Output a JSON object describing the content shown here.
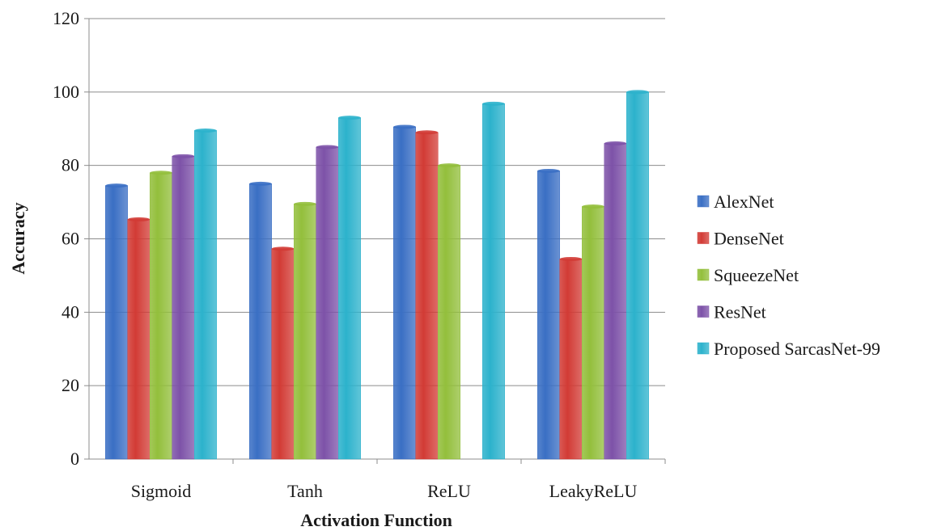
{
  "chart_data": {
    "type": "bar",
    "title": "",
    "xlabel": "Activation Function",
    "ylabel": "Accuracy",
    "categories": [
      "Sigmoid",
      "Tanh",
      "ReLU",
      "LeakyReLU"
    ],
    "ylim": [
      0,
      120
    ],
    "yticks": [
      0,
      20,
      40,
      60,
      80,
      100,
      120
    ],
    "grid": true,
    "legend_position": "right",
    "series": [
      {
        "name": "AlexNet",
        "color": "#3a6fc4",
        "values": [
          74.5,
          75,
          90.5,
          78.5
        ]
      },
      {
        "name": "DenseNet",
        "color": "#d23b35",
        "values": [
          65.3,
          57.3,
          89,
          54.5
        ]
      },
      {
        "name": "SqueezeNet",
        "color": "#93bf3c",
        "values": [
          78,
          69.5,
          80,
          68.8
        ]
      },
      {
        "name": "ResNet",
        "color": "#7d52a8",
        "values": [
          82.5,
          85,
          0,
          86
        ]
      },
      {
        "name": "Proposed SarcasNet-99",
        "color": "#2cb2cc",
        "values": [
          89.5,
          93,
          96.8,
          100
        ]
      }
    ]
  }
}
